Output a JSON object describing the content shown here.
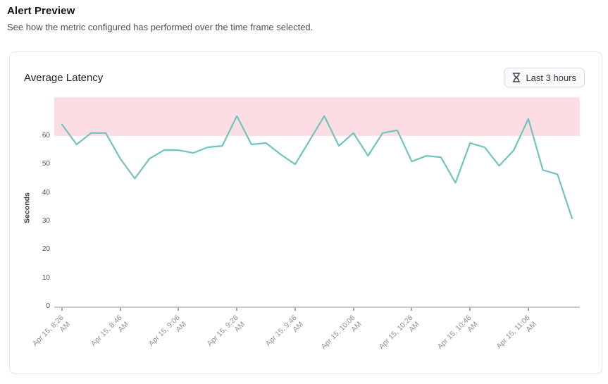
{
  "header": {
    "title": "Alert Preview",
    "subtitle": "See how the metric configured has performed over the time frame selected."
  },
  "card": {
    "title": "Average Latency",
    "time_range_label": "Last 3 hours",
    "time_range_icon": "hourglass-icon"
  },
  "colors": {
    "line": "#6fc4bd",
    "threshold_band": "#fcdde3",
    "axis": "#c6c9cd",
    "button_border": "#d4d8dd",
    "button_bg": "#f9fafb"
  },
  "chart_data": {
    "type": "line",
    "title": "Average Latency",
    "ylabel": "Seconds",
    "xlabel": "",
    "grid": false,
    "legend": "none",
    "ylim": [
      0,
      73.6
    ],
    "yticks": [
      0,
      10,
      20,
      30,
      40,
      50,
      60
    ],
    "x_tick_every": 4,
    "threshold_band": {
      "from": 60,
      "to": 73.6,
      "color": "#fcdde3"
    },
    "x": [
      "Apr 15, 8:26 AM",
      "Apr 15, 8:31 AM",
      "Apr 15, 8:36 AM",
      "Apr 15, 8:41 AM",
      "Apr 15, 8:46 AM",
      "Apr 15, 8:51 AM",
      "Apr 15, 8:56 AM",
      "Apr 15, 9:01 AM",
      "Apr 15, 9:06 AM",
      "Apr 15, 9:11 AM",
      "Apr 15, 9:16 AM",
      "Apr 15, 9:21 AM",
      "Apr 15, 9:26 AM",
      "Apr 15, 9:31 AM",
      "Apr 15, 9:36 AM",
      "Apr 15, 9:41 AM",
      "Apr 15, 9:46 AM",
      "Apr 15, 9:51 AM",
      "Apr 15, 9:56 AM",
      "Apr 15, 10:01 AM",
      "Apr 15, 10:06 AM",
      "Apr 15, 10:11 AM",
      "Apr 15, 10:16 AM",
      "Apr 15, 10:21 AM",
      "Apr 15, 10:26 AM",
      "Apr 15, 10:31 AM",
      "Apr 15, 10:36 AM",
      "Apr 15, 10:41 AM",
      "Apr 15, 10:46 AM",
      "Apr 15, 10:51 AM",
      "Apr 15, 10:56 AM",
      "Apr 15, 11:01 AM",
      "Apr 15, 11:06 AM",
      "Apr 15, 11:11 AM",
      "Apr 15, 11:16 AM",
      "Apr 15, 11:21 AM"
    ],
    "series": [
      {
        "name": "Average Latency",
        "color": "#6fc4bd",
        "values": [
          64,
          57,
          61,
          61,
          52,
          45,
          52,
          55,
          55,
          54,
          56,
          56.5,
          67,
          57,
          57.5,
          53.5,
          50,
          58.5,
          67,
          56.5,
          61,
          53,
          61,
          62,
          51,
          53,
          52.5,
          43.5,
          57.5,
          56,
          49.5,
          55,
          66,
          48,
          46.5,
          31
        ]
      }
    ]
  }
}
